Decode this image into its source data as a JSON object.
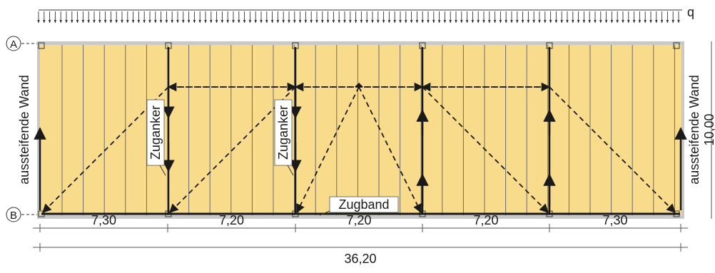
{
  "load": {
    "symbol": "q"
  },
  "axes": [
    {
      "id": "A",
      "label": "A"
    },
    {
      "id": "B",
      "label": "B"
    }
  ],
  "annotations": {
    "left_wall": "aussteifende Wand",
    "right_wall": "aussteifende Wand",
    "tie_anchor_1": "Zuganker",
    "tie_anchor_2": "Zuganker",
    "tie_band": "Zugband"
  },
  "dimensions": {
    "spans": [
      "7,30",
      "7,20",
      "7,20",
      "7,20",
      "7,30"
    ],
    "total": "36,20",
    "depth": "10,00"
  },
  "colors": {
    "panel_fill": "#f8dc8c",
    "panel_border": "#c9c9c9",
    "panel_lines": "#6b6b6b",
    "struts": "#1a1a1a"
  }
}
